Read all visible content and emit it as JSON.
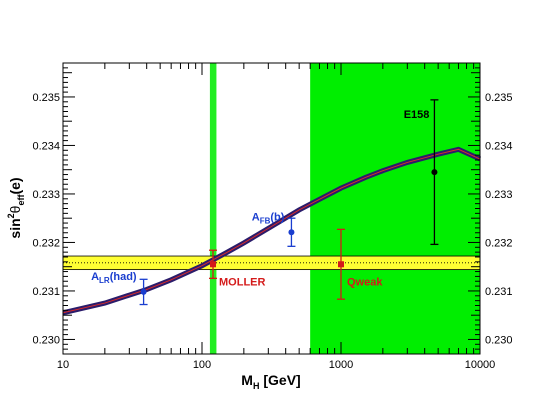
{
  "chart_data": {
    "type": "line",
    "title": "",
    "xlabel_main": "M",
    "xlabel_sub": "H",
    "xlabel_unit": " [GeV]",
    "ylabel_pre": "sin",
    "ylabel_sup": "2",
    "ylabel_theta": "θ",
    "ylabel_sub": "eff",
    "ylabel_post": "(e)",
    "x_scale": "log",
    "xlim": [
      10,
      10000
    ],
    "ylim": [
      0.2297,
      0.2357
    ],
    "x_ticks": [
      {
        "value": 10,
        "label": "10"
      },
      {
        "value": 100,
        "label": "100"
      },
      {
        "value": 1000,
        "label": "1000"
      },
      {
        "value": 10000,
        "label": "10000"
      }
    ],
    "y_ticks": [
      {
        "value": 0.23,
        "label": "0.230"
      },
      {
        "value": 0.231,
        "label": "0.231"
      },
      {
        "value": 0.232,
        "label": "0.232"
      },
      {
        "value": 0.233,
        "label": "0.233"
      },
      {
        "value": 0.234,
        "label": "0.234"
      },
      {
        "value": 0.235,
        "label": "0.235"
      }
    ],
    "grid": false,
    "prediction_curve": {
      "x": [
        10,
        20,
        40,
        60,
        100,
        150,
        200,
        300,
        500,
        700,
        1000,
        1500,
        2000,
        3000,
        5000,
        7000,
        10000
      ],
      "y": [
        0.23055,
        0.23075,
        0.23103,
        0.23123,
        0.23152,
        0.23179,
        0.23199,
        0.23229,
        0.23267,
        0.23289,
        0.23312,
        0.23334,
        0.23348,
        0.23365,
        0.23382,
        0.23392,
        0.23372
      ],
      "color_band": "#2b1c6b",
      "color_center": "#d92b2b"
    },
    "bands": [
      {
        "kind": "vertical",
        "x_range": [
          114,
          127
        ],
        "color": "#22ee22"
      },
      {
        "kind": "vertical",
        "x_range": [
          600,
          10000
        ],
        "color": "#00ee00"
      },
      {
        "kind": "horizontal",
        "y_range": [
          0.23144,
          0.23172
        ],
        "center": 0.23158,
        "color": "#ffff33"
      }
    ],
    "points": [
      {
        "label_main": "A",
        "label_sub": "LR",
        "label_post": "(had)",
        "x": 38,
        "y": 0.23098,
        "yerr": 0.00026,
        "color": "#1a3ecf",
        "label_pos": "left-above"
      },
      {
        "label_main": "A",
        "label_sub": "FB",
        "label_post": "(b)",
        "x": 440,
        "y": 0.23221,
        "yerr": 0.00029,
        "color": "#1a3ecf",
        "label_pos": "left-above"
      },
      {
        "label_main": "MOLLER",
        "label_sub": "",
        "label_post": "",
        "x": 120,
        "y": 0.23155,
        "yerr": 0.00029,
        "color": "#d41a1a",
        "label_pos": "right-below"
      },
      {
        "label_main": "Qweak",
        "label_sub": "",
        "label_post": "",
        "x": 1000,
        "y": 0.23155,
        "yerr": 0.00072,
        "color": "#d41a1a",
        "label_pos": "right-below"
      },
      {
        "label_main": "E158",
        "label_sub": "",
        "label_post": "",
        "x": 4700,
        "y": 0.23345,
        "yerr": 0.00149,
        "color": "#000000",
        "label_pos": "left-top"
      }
    ]
  }
}
